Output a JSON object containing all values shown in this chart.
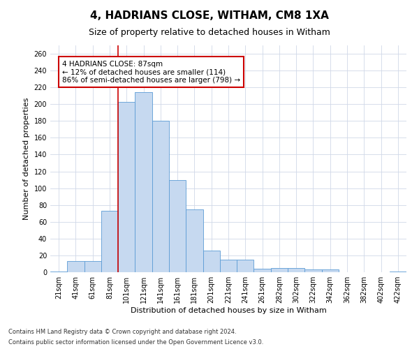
{
  "title": "4, HADRIANS CLOSE, WITHAM, CM8 1XA",
  "subtitle": "Size of property relative to detached houses in Witham",
  "xlabel": "Distribution of detached houses by size in Witham",
  "ylabel": "Number of detached properties",
  "categories": [
    "21sqm",
    "41sqm",
    "61sqm",
    "81sqm",
    "101sqm",
    "121sqm",
    "141sqm",
    "161sqm",
    "181sqm",
    "201sqm",
    "221sqm",
    "241sqm",
    "261sqm",
    "282sqm",
    "302sqm",
    "322sqm",
    "342sqm",
    "362sqm",
    "382sqm",
    "402sqm",
    "422sqm"
  ],
  "values": [
    1,
    13,
    13,
    73,
    203,
    214,
    180,
    110,
    75,
    26,
    15,
    15,
    4,
    5,
    5,
    3,
    3,
    0,
    0,
    0,
    1
  ],
  "bar_color": "#c6d9f0",
  "bar_edge_color": "#5b9bd5",
  "vline_color": "#cc0000",
  "vline_x_index": 3.5,
  "annotation_text": "4 HADRIANS CLOSE: 87sqm\n← 12% of detached houses are smaller (114)\n86% of semi-detached houses are larger (798) →",
  "annotation_box_color": "#cc0000",
  "ylim": [
    0,
    270
  ],
  "yticks": [
    0,
    20,
    40,
    60,
    80,
    100,
    120,
    140,
    160,
    180,
    200,
    220,
    240,
    260
  ],
  "footnote1": "Contains HM Land Registry data © Crown copyright and database right 2024.",
  "footnote2": "Contains public sector information licensed under the Open Government Licence v3.0.",
  "background_color": "#ffffff",
  "grid_color": "#d0d8e8",
  "title_fontsize": 11,
  "subtitle_fontsize": 9,
  "xlabel_fontsize": 8,
  "ylabel_fontsize": 8,
  "tick_fontsize": 7,
  "annotation_fontsize": 7.5,
  "footnote_fontsize": 6
}
